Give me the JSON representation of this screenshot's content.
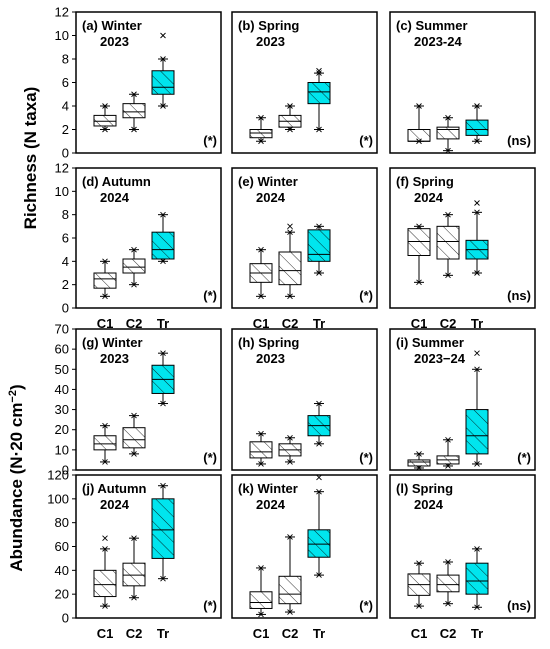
{
  "colors": {
    "treatment": "#00e5ee",
    "control": "#ffffff",
    "stroke": "#000000"
  },
  "rows": [
    {
      "ylabel": "Richness (N taxa)",
      "ylim": [
        0,
        12
      ],
      "yticks": [
        0,
        2,
        4,
        6,
        8,
        10,
        12
      ]
    },
    {
      "ylabel_main": "Abundance (N·20 cm",
      "ylabel_sup": "−2",
      "ylabel_tail": ")"
    }
  ],
  "chart_data": [
    {
      "type": "box",
      "label1": "(a) Winter",
      "label2": "2023",
      "sig": "(*)",
      "categories": [
        "C1",
        "C2",
        "Tr"
      ],
      "ylim": [
        0,
        12
      ],
      "yticks": [
        0,
        2,
        4,
        6,
        8,
        10,
        12
      ],
      "boxes": [
        {
          "min": 2.0,
          "q1": 2.3,
          "median": 2.7,
          "q3": 3.2,
          "max": 4.0,
          "outliers": []
        },
        {
          "min": 2.0,
          "q1": 3.0,
          "median": 3.5,
          "q3": 4.2,
          "max": 5.0,
          "outliers": []
        },
        {
          "min": 4.0,
          "q1": 5.0,
          "median": 5.6,
          "q3": 7.0,
          "max": 8.0,
          "outliers": [
            10.0
          ]
        }
      ]
    },
    {
      "type": "box",
      "label1": "(b) Spring",
      "label2": "2023",
      "sig": "(*)",
      "categories": [
        "C1",
        "C2",
        "Tr"
      ],
      "ylim": [
        0,
        12
      ],
      "yticks": [
        0,
        2,
        4,
        6,
        8,
        10,
        12
      ],
      "boxes": [
        {
          "min": 1.0,
          "q1": 1.3,
          "median": 1.7,
          "q3": 2.0,
          "max": 3.0,
          "outliers": []
        },
        {
          "min": 2.0,
          "q1": 2.2,
          "median": 2.7,
          "q3": 3.2,
          "max": 4.0,
          "outliers": []
        },
        {
          "min": 2.0,
          "q1": 4.2,
          "median": 5.2,
          "q3": 6.0,
          "max": 6.8,
          "outliers": [
            7.0
          ]
        }
      ]
    },
    {
      "type": "box",
      "label1": "(c) Summer",
      "label2": "2023-24",
      "sig": "(ns)",
      "categories": [
        "C1",
        "C2",
        "Tr"
      ],
      "ylim": [
        0,
        12
      ],
      "yticks": [
        0,
        2,
        4,
        6,
        8,
        10,
        12
      ],
      "boxes": [
        {
          "min": 1.0,
          "q1": 1.0,
          "median": 1.0,
          "q3": 2.0,
          "max": 4.0,
          "outliers": []
        },
        {
          "min": 0.2,
          "q1": 1.2,
          "median": 2.0,
          "q3": 2.2,
          "max": 3.0,
          "outliers": []
        },
        {
          "min": 1.0,
          "q1": 1.5,
          "median": 2.0,
          "q3": 2.8,
          "max": 4.0,
          "outliers": []
        }
      ]
    },
    {
      "type": "box",
      "label1": "(d) Autumn",
      "label2": "2024",
      "sig": "(*)",
      "categories": [
        "C1",
        "C2",
        "Tr"
      ],
      "ylim": [
        0,
        12
      ],
      "yticks": [
        0,
        2,
        4,
        6,
        8,
        10,
        12
      ],
      "boxes": [
        {
          "min": 1.0,
          "q1": 1.7,
          "median": 2.5,
          "q3": 3.0,
          "max": 4.0,
          "outliers": []
        },
        {
          "min": 2.0,
          "q1": 3.0,
          "median": 3.5,
          "q3": 4.2,
          "max": 5.0,
          "outliers": []
        },
        {
          "min": 4.0,
          "q1": 4.2,
          "median": 5.0,
          "q3": 6.5,
          "max": 8.0,
          "outliers": []
        }
      ]
    },
    {
      "type": "box",
      "label1": "(e) Winter",
      "label2": "2024",
      "sig": "(*)",
      "categories": [
        "C1",
        "C2",
        "Tr"
      ],
      "ylim": [
        0,
        12
      ],
      "yticks": [
        0,
        2,
        4,
        6,
        8,
        10,
        12
      ],
      "boxes": [
        {
          "min": 1.0,
          "q1": 2.2,
          "median": 3.0,
          "q3": 3.8,
          "max": 5.0,
          "outliers": []
        },
        {
          "min": 1.0,
          "q1": 2.0,
          "median": 3.2,
          "q3": 4.8,
          "max": 6.5,
          "outliers": [
            7.0
          ]
        },
        {
          "min": 3.0,
          "q1": 4.0,
          "median": 4.6,
          "q3": 6.7,
          "max": 7.0,
          "outliers": []
        }
      ]
    },
    {
      "type": "box",
      "label1": "(f) Spring",
      "label2": "2024",
      "sig": "(ns)",
      "categories": [
        "C1",
        "C2",
        "Tr"
      ],
      "ylim": [
        0,
        12
      ],
      "yticks": [
        0,
        2,
        4,
        6,
        8,
        10,
        12
      ],
      "boxes": [
        {
          "min": 2.2,
          "q1": 4.5,
          "median": 5.7,
          "q3": 6.8,
          "max": 7.0,
          "outliers": []
        },
        {
          "min": 2.8,
          "q1": 4.2,
          "median": 5.7,
          "q3": 7.0,
          "max": 8.0,
          "outliers": []
        },
        {
          "min": 3.0,
          "q1": 4.2,
          "median": 5.0,
          "q3": 5.8,
          "max": 8.2,
          "outliers": [
            9.0
          ]
        }
      ]
    },
    {
      "type": "box",
      "label1": "(g) Winter",
      "label2": "2023",
      "sig": "(*)",
      "categories": [
        "C1",
        "C2",
        "Tr"
      ],
      "ylim": [
        0,
        70
      ],
      "yticks": [
        0,
        10,
        20,
        30,
        40,
        50,
        60,
        70
      ],
      "boxes": [
        {
          "min": 4,
          "q1": 10,
          "median": 13,
          "q3": 17,
          "max": 22,
          "outliers": []
        },
        {
          "min": 8,
          "q1": 11,
          "median": 15,
          "q3": 21,
          "max": 27,
          "outliers": []
        },
        {
          "min": 33,
          "q1": 38,
          "median": 45,
          "q3": 52,
          "max": 58,
          "outliers": []
        }
      ]
    },
    {
      "type": "box",
      "label1": "(h) Spring",
      "label2": "2023",
      "sig": "(*)",
      "categories": [
        "C1",
        "C2",
        "Tr"
      ],
      "ylim": [
        0,
        70
      ],
      "yticks": [
        0,
        10,
        20,
        30,
        40,
        50,
        60,
        70
      ],
      "boxes": [
        {
          "min": 3,
          "q1": 6,
          "median": 9,
          "q3": 14,
          "max": 18,
          "outliers": []
        },
        {
          "min": 4,
          "q1": 7,
          "median": 10,
          "q3": 13,
          "max": 16,
          "outliers": []
        },
        {
          "min": 13,
          "q1": 17,
          "median": 22,
          "q3": 27,
          "max": 33,
          "outliers": []
        }
      ]
    },
    {
      "type": "box",
      "label1": "(i) Summer",
      "label2": "2023−24",
      "sig": "(*)",
      "categories": [
        "C1",
        "C2",
        "Tr"
      ],
      "ylim": [
        0,
        70
      ],
      "yticks": [
        0,
        10,
        20,
        30,
        40,
        50,
        60,
        70
      ],
      "boxes": [
        {
          "min": 1,
          "q1": 2,
          "median": 4,
          "q3": 5,
          "max": 8,
          "outliers": []
        },
        {
          "min": 2,
          "q1": 3,
          "median": 5,
          "q3": 7,
          "max": 15,
          "outliers": []
        },
        {
          "min": 3,
          "q1": 8,
          "median": 17,
          "q3": 30,
          "max": 50,
          "outliers": [
            58
          ]
        }
      ]
    },
    {
      "type": "box",
      "label1": "(j) Autumn",
      "label2": "2024",
      "sig": "(*)",
      "categories": [
        "C1",
        "C2",
        "Tr"
      ],
      "ylim": [
        0,
        120
      ],
      "yticks": [
        0,
        20,
        40,
        60,
        80,
        100,
        120
      ],
      "boxes": [
        {
          "min": 10,
          "q1": 18,
          "median": 28,
          "q3": 40,
          "max": 58,
          "outliers": [
            67
          ]
        },
        {
          "min": 17,
          "q1": 27,
          "median": 36,
          "q3": 46,
          "max": 67,
          "outliers": []
        },
        {
          "min": 33,
          "q1": 50,
          "median": 74,
          "q3": 100,
          "max": 111,
          "outliers": []
        }
      ]
    },
    {
      "type": "box",
      "label1": "(k) Winter",
      "label2": "2024",
      "sig": "(*)",
      "categories": [
        "C1",
        "C2",
        "Tr"
      ],
      "ylim": [
        0,
        120
      ],
      "yticks": [
        0,
        20,
        40,
        60,
        80,
        100,
        120
      ],
      "boxes": [
        {
          "min": 3,
          "q1": 8,
          "median": 13,
          "q3": 22,
          "max": 42,
          "outliers": []
        },
        {
          "min": 5,
          "q1": 12,
          "median": 20,
          "q3": 35,
          "max": 68,
          "outliers": []
        },
        {
          "min": 36,
          "q1": 51,
          "median": 62,
          "q3": 74,
          "max": 106,
          "outliers": [
            118
          ]
        }
      ]
    },
    {
      "type": "box",
      "label1": "(l) Spring",
      "label2": "2024",
      "sig": "(ns)",
      "categories": [
        "C1",
        "C2",
        "Tr"
      ],
      "ylim": [
        0,
        120
      ],
      "yticks": [
        0,
        20,
        40,
        60,
        80,
        100,
        120
      ],
      "boxes": [
        {
          "min": 10,
          "q1": 19,
          "median": 28,
          "q3": 37,
          "max": 46,
          "outliers": []
        },
        {
          "min": 12,
          "q1": 22,
          "median": 28,
          "q3": 36,
          "max": 47,
          "outliers": []
        },
        {
          "min": 9,
          "q1": 20,
          "median": 31,
          "q3": 46,
          "max": 58,
          "outliers": []
        }
      ]
    }
  ]
}
